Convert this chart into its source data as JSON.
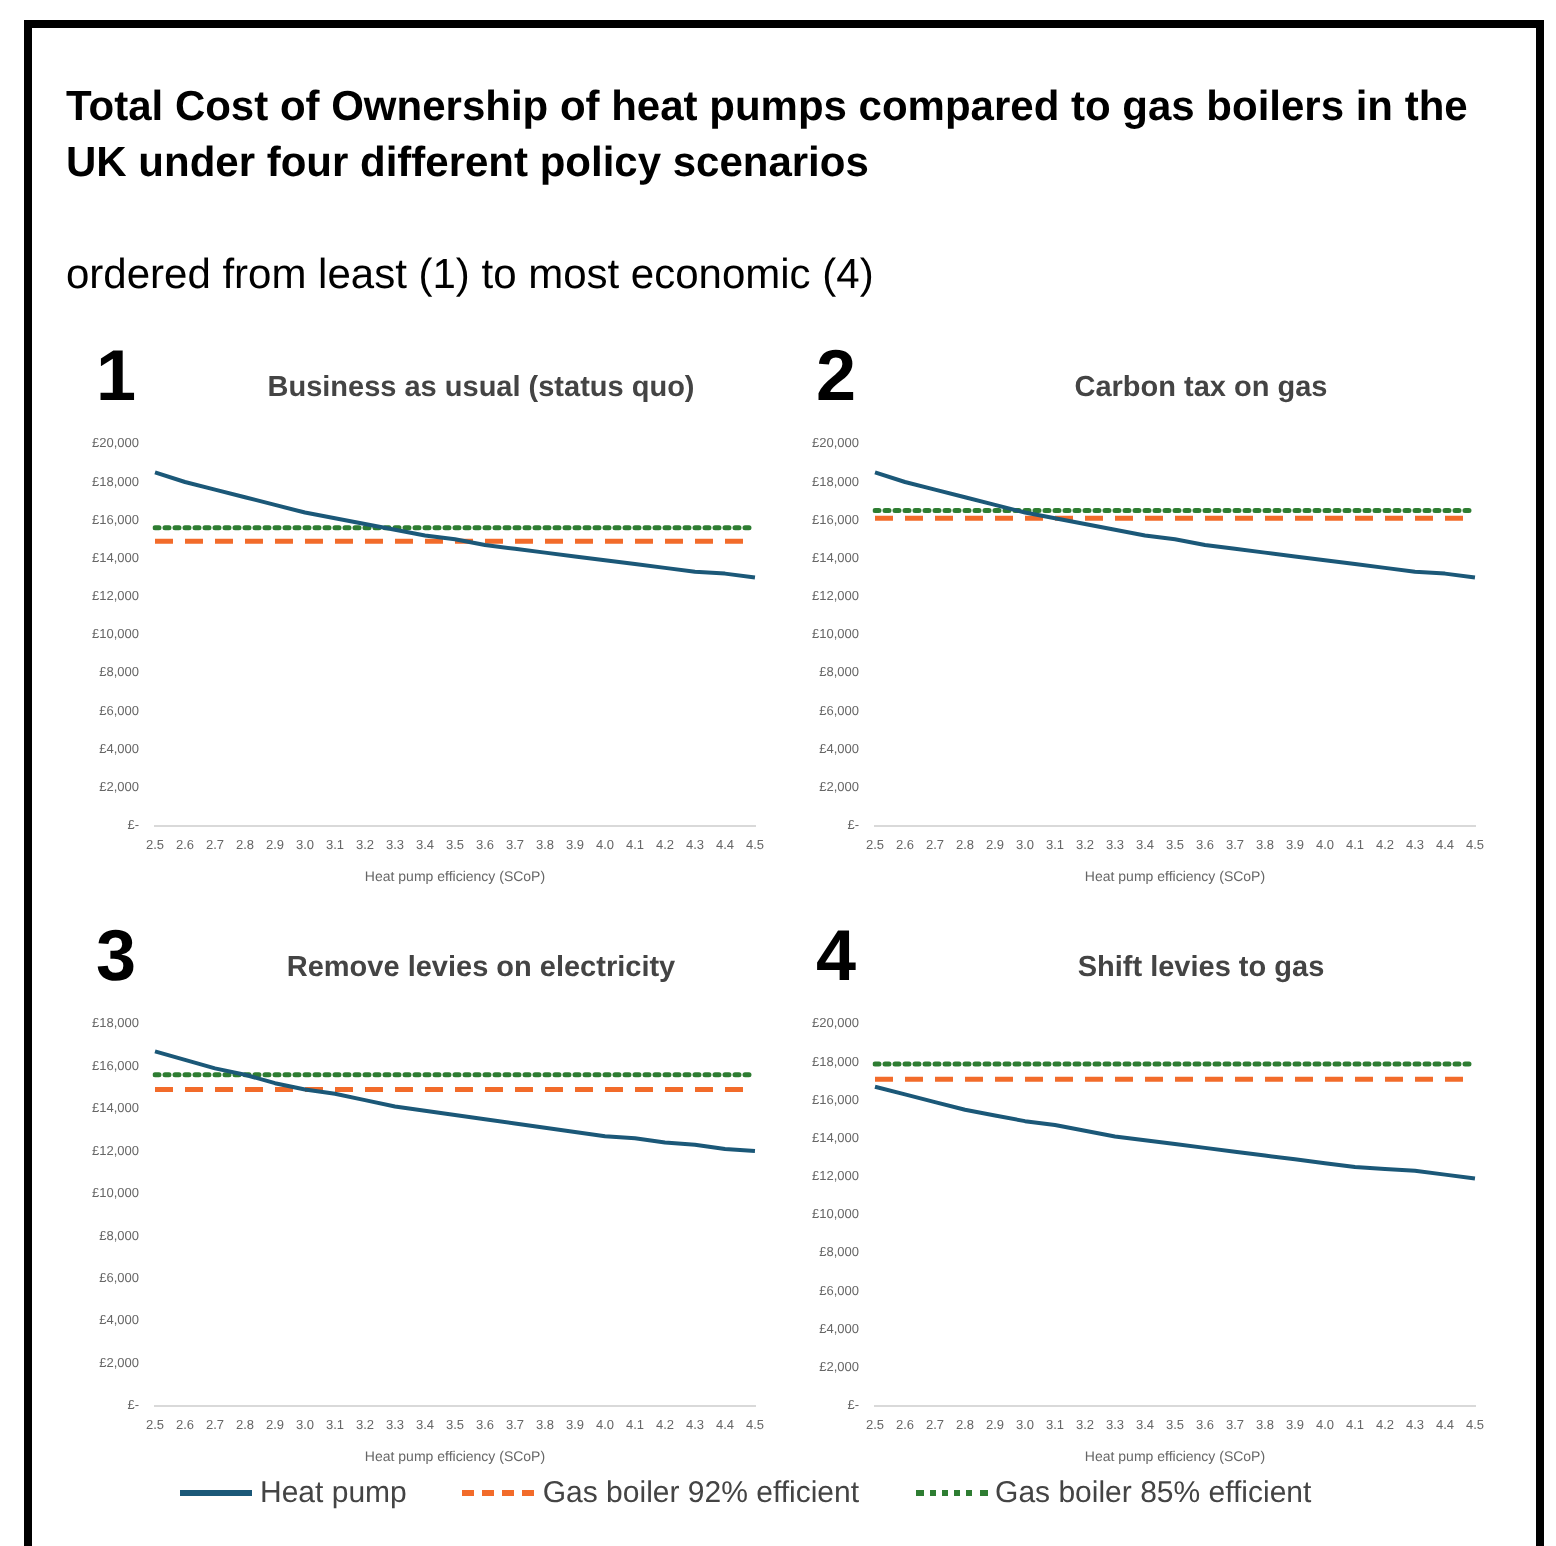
{
  "chart_data": [
    {
      "type": "other",
      "title": "Total Cost of Ownership of heat pumps compared to gas boilers in the UK under four different policy scenarios",
      "subtitle": "ordered from least (1) to most economic (4)"
    },
    {
      "type": "line",
      "title": "Business as usual (status quo)",
      "annotations": [
        "1"
      ],
      "xlabel": "Heat pump efficiency (SCoP)",
      "legend": "bottom",
      "categories": [
        "2.5",
        "2.6",
        "2.7",
        "2.8",
        "2.9",
        "3.0",
        "3.1",
        "3.2",
        "3.3",
        "3.4",
        "3.5",
        "3.6",
        "3.7",
        "3.8",
        "3.9",
        "4.0",
        "4.1",
        "4.2",
        "4.3",
        "4.4",
        "4.5"
      ],
      "ylim": [
        0,
        20000
      ],
      "yticks": [
        {
          "value": 0,
          "label": "£-"
        },
        {
          "value": 2000,
          "label": "£2,000"
        },
        {
          "value": 4000,
          "label": "£4,000"
        },
        {
          "value": 6000,
          "label": "£6,000"
        },
        {
          "value": 8000,
          "label": "£8,000"
        },
        {
          "value": 10000,
          "label": "£10,000"
        },
        {
          "value": 12000,
          "label": "£12,000"
        },
        {
          "value": 14000,
          "label": "£14,000"
        },
        {
          "value": 16000,
          "label": "£16,000"
        },
        {
          "value": 18000,
          "label": "£18,000"
        },
        {
          "value": 20000,
          "label": "£20,000"
        }
      ],
      "series": [
        {
          "name": "Heat pump",
          "color": "#1b5878",
          "line_style": "solid",
          "values": [
            18500,
            18000,
            17600,
            17200,
            16800,
            16400,
            16100,
            15800,
            15500,
            15200,
            15000,
            14700,
            14500,
            14300,
            14100,
            13900,
            13700,
            13500,
            13300,
            13200,
            13000
          ]
        },
        {
          "name": "Gas boiler 92% efficient",
          "color": "#f26b2a",
          "line_style": "dashed",
          "values": [
            14900,
            14900,
            14900,
            14900,
            14900,
            14900,
            14900,
            14900,
            14900,
            14900,
            14900,
            14900,
            14900,
            14900,
            14900,
            14900,
            14900,
            14900,
            14900,
            14900,
            14900
          ]
        },
        {
          "name": "Gas boiler 85% efficient",
          "color": "#2e7d32",
          "line_style": "dotted",
          "values": [
            15600,
            15600,
            15600,
            15600,
            15600,
            15600,
            15600,
            15600,
            15600,
            15600,
            15600,
            15600,
            15600,
            15600,
            15600,
            15600,
            15600,
            15600,
            15600,
            15600,
            15600
          ]
        }
      ]
    },
    {
      "type": "line",
      "title": "Carbon tax on gas",
      "annotations": [
        "2"
      ],
      "xlabel": "Heat pump efficiency (SCoP)",
      "categories": [
        "2.5",
        "2.6",
        "2.7",
        "2.8",
        "2.9",
        "3.0",
        "3.1",
        "3.2",
        "3.3",
        "3.4",
        "3.5",
        "3.6",
        "3.7",
        "3.8",
        "3.9",
        "4.0",
        "4.1",
        "4.2",
        "4.3",
        "4.4",
        "4.5"
      ],
      "ylim": [
        0,
        20000
      ],
      "yticks": [
        {
          "value": 0,
          "label": "£-"
        },
        {
          "value": 2000,
          "label": "£2,000"
        },
        {
          "value": 4000,
          "label": "£4,000"
        },
        {
          "value": 6000,
          "label": "£6,000"
        },
        {
          "value": 8000,
          "label": "£8,000"
        },
        {
          "value": 10000,
          "label": "£10,000"
        },
        {
          "value": 12000,
          "label": "£12,000"
        },
        {
          "value": 14000,
          "label": "£14,000"
        },
        {
          "value": 16000,
          "label": "£16,000"
        },
        {
          "value": 18000,
          "label": "£18,000"
        },
        {
          "value": 20000,
          "label": "£20,000"
        }
      ],
      "series": [
        {
          "color": "#1b5878",
          "line_style": "solid",
          "values": [
            18500,
            18000,
            17600,
            17200,
            16800,
            16400,
            16100,
            15800,
            15500,
            15200,
            15000,
            14700,
            14500,
            14300,
            14100,
            13900,
            13700,
            13500,
            13300,
            13200,
            13000
          ]
        },
        {
          "color": "#f26b2a",
          "line_style": "dashed",
          "values": [
            16100,
            16100,
            16100,
            16100,
            16100,
            16100,
            16100,
            16100,
            16100,
            16100,
            16100,
            16100,
            16100,
            16100,
            16100,
            16100,
            16100,
            16100,
            16100,
            16100,
            16100
          ]
        },
        {
          "color": "#2e7d32",
          "line_style": "dotted",
          "values": [
            16500,
            16500,
            16500,
            16500,
            16500,
            16500,
            16500,
            16500,
            16500,
            16500,
            16500,
            16500,
            16500,
            16500,
            16500,
            16500,
            16500,
            16500,
            16500,
            16500,
            16500
          ]
        }
      ]
    },
    {
      "type": "line",
      "title": "Remove levies on electricity",
      "annotations": [
        "3"
      ],
      "xlabel": "Heat pump efficiency (SCoP)",
      "categories": [
        "2.5",
        "2.6",
        "2.7",
        "2.8",
        "2.9",
        "3.0",
        "3.1",
        "3.2",
        "3.3",
        "3.4",
        "3.5",
        "3.6",
        "3.7",
        "3.8",
        "3.9",
        "4.0",
        "4.1",
        "4.2",
        "4.3",
        "4.4",
        "4.5"
      ],
      "ylim": [
        0,
        18000
      ],
      "yticks": [
        {
          "value": 0,
          "label": "£-"
        },
        {
          "value": 2000,
          "label": "£2,000"
        },
        {
          "value": 4000,
          "label": "£4,000"
        },
        {
          "value": 6000,
          "label": "£6,000"
        },
        {
          "value": 8000,
          "label": "£8,000"
        },
        {
          "value": 10000,
          "label": "£10,000"
        },
        {
          "value": 12000,
          "label": "£12,000"
        },
        {
          "value": 14000,
          "label": "£14,000"
        },
        {
          "value": 16000,
          "label": "£16,000"
        },
        {
          "value": 18000,
          "label": "£18,000"
        }
      ],
      "series": [
        {
          "color": "#1b5878",
          "line_style": "solid",
          "values": [
            16700,
            16300,
            15900,
            15600,
            15200,
            14900,
            14700,
            14400,
            14100,
            13900,
            13700,
            13500,
            13300,
            13100,
            12900,
            12700,
            12600,
            12400,
            12300,
            12100,
            12000
          ]
        },
        {
          "color": "#f26b2a",
          "line_style": "dashed",
          "values": [
            14900,
            14900,
            14900,
            14900,
            14900,
            14900,
            14900,
            14900,
            14900,
            14900,
            14900,
            14900,
            14900,
            14900,
            14900,
            14900,
            14900,
            14900,
            14900,
            14900,
            14900
          ]
        },
        {
          "color": "#2e7d32",
          "line_style": "dotted",
          "values": [
            15600,
            15600,
            15600,
            15600,
            15600,
            15600,
            15600,
            15600,
            15600,
            15600,
            15600,
            15600,
            15600,
            15600,
            15600,
            15600,
            15600,
            15600,
            15600,
            15600,
            15600
          ]
        }
      ]
    },
    {
      "type": "line",
      "title": "Shift levies to gas",
      "annotations": [
        "4"
      ],
      "xlabel": "Heat pump efficiency (SCoP)",
      "categories": [
        "2.5",
        "2.6",
        "2.7",
        "2.8",
        "2.9",
        "3.0",
        "3.1",
        "3.2",
        "3.3",
        "3.4",
        "3.5",
        "3.6",
        "3.7",
        "3.8",
        "3.9",
        "4.0",
        "4.1",
        "4.2",
        "4.3",
        "4.4",
        "4.5"
      ],
      "ylim": [
        0,
        20000
      ],
      "yticks": [
        {
          "value": 0,
          "label": "£-"
        },
        {
          "value": 2000,
          "label": "£2,000"
        },
        {
          "value": 4000,
          "label": "£4,000"
        },
        {
          "value": 6000,
          "label": "£6,000"
        },
        {
          "value": 8000,
          "label": "£8,000"
        },
        {
          "value": 10000,
          "label": "£10,000"
        },
        {
          "value": 12000,
          "label": "£12,000"
        },
        {
          "value": 14000,
          "label": "£14,000"
        },
        {
          "value": 16000,
          "label": "£16,000"
        },
        {
          "value": 18000,
          "label": "£18,000"
        },
        {
          "value": 20000,
          "label": "£20,000"
        }
      ],
      "series": [
        {
          "color": "#1b5878",
          "line_style": "solid",
          "values": [
            16700,
            16300,
            15900,
            15500,
            15200,
            14900,
            14700,
            14400,
            14100,
            13900,
            13700,
            13500,
            13300,
            13100,
            12900,
            12700,
            12500,
            12400,
            12300,
            12100,
            11900
          ]
        },
        {
          "color": "#f26b2a",
          "line_style": "dashed",
          "values": [
            17100,
            17100,
            17100,
            17100,
            17100,
            17100,
            17100,
            17100,
            17100,
            17100,
            17100,
            17100,
            17100,
            17100,
            17100,
            17100,
            17100,
            17100,
            17100,
            17100,
            17100
          ]
        },
        {
          "color": "#2e7d32",
          "line_style": "dotted",
          "values": [
            17900,
            17900,
            17900,
            17900,
            17900,
            17900,
            17900,
            17900,
            17900,
            17900,
            17900,
            17900,
            17900,
            17900,
            17900,
            17900,
            17900,
            17900,
            17900,
            17900,
            17900
          ]
        }
      ]
    }
  ]
}
